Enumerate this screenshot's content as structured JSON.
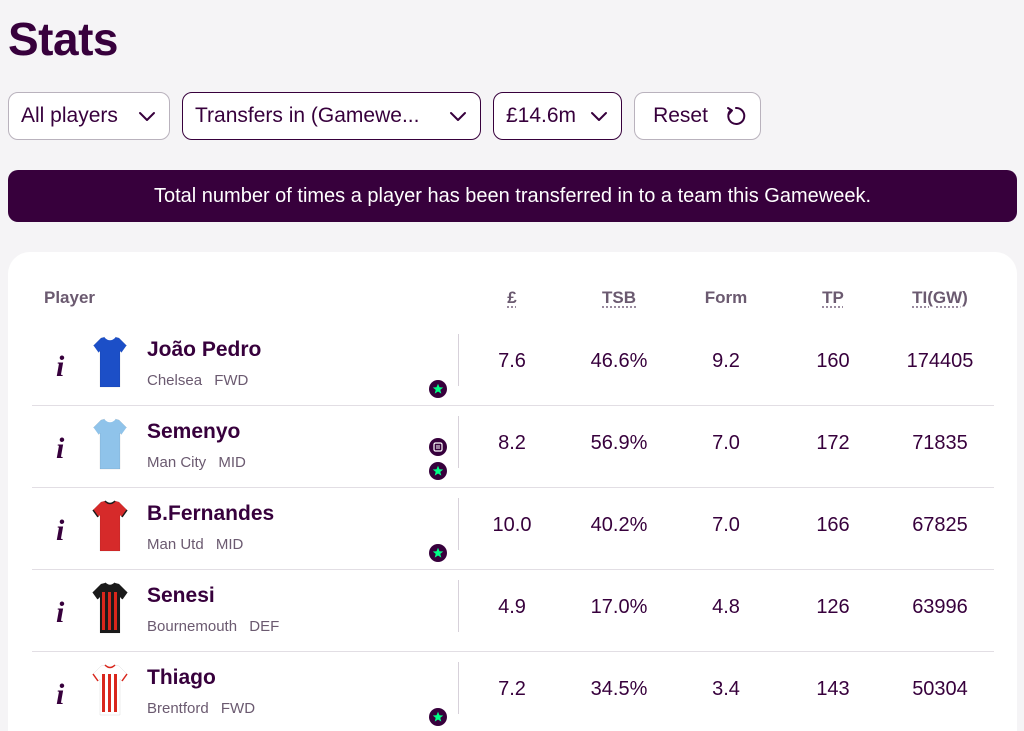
{
  "page": {
    "title": "Stats"
  },
  "filters": {
    "players": "All players",
    "stat": "Transfers in (Gamewe...",
    "price": "£14.6m",
    "reset": "Reset"
  },
  "banner": "Total number of times a player has been transferred in to a team this Gameweek.",
  "table": {
    "headers": {
      "player": "Player",
      "price": "£",
      "tsb": "TSB",
      "form": "Form",
      "tp": "TP",
      "ti": "TI(GW)"
    },
    "rows": [
      {
        "name": "João Pedro",
        "team": "Chelsea",
        "pos": "FWD",
        "price": "7.6",
        "tsb": "46.6%",
        "form": "9.2",
        "tp": "160",
        "ti": "174405",
        "shirt": {
          "main": "#1c4fc7",
          "trim": "#ffffff",
          "stripe": null
        },
        "badges": [
          "star-icon"
        ]
      },
      {
        "name": "Semenyo",
        "team": "Man City",
        "pos": "MID",
        "price": "8.2",
        "tsb": "56.9%",
        "form": "7.0",
        "tp": "172",
        "ti": "71835",
        "shirt": {
          "main": "#8fc3ea",
          "trim": "#ffffff",
          "stripe": null
        },
        "badges": [
          "news-icon",
          "star-icon"
        ]
      },
      {
        "name": "B.Fernandes",
        "team": "Man Utd",
        "pos": "MID",
        "price": "10.0",
        "tsb": "40.2%",
        "form": "7.0",
        "tp": "166",
        "ti": "67825",
        "shirt": {
          "main": "#d62a2a",
          "trim": "#1a1a1a",
          "stripe": null
        },
        "badges": [
          "star-icon"
        ]
      },
      {
        "name": "Senesi",
        "team": "Bournemouth",
        "pos": "DEF",
        "price": "4.9",
        "tsb": "17.0%",
        "form": "4.8",
        "tp": "126",
        "ti": "63996",
        "shirt": {
          "main": "#1a1a1a",
          "trim": "#1a1a1a",
          "stripe": "#d9261c"
        },
        "badges": []
      },
      {
        "name": "Thiago",
        "team": "Brentford",
        "pos": "FWD",
        "price": "7.2",
        "tsb": "34.5%",
        "form": "3.4",
        "tp": "143",
        "ti": "50304",
        "shirt": {
          "main": "#ffffff",
          "trim": "#d9261c",
          "stripe": "#d9261c"
        },
        "badges": [
          "star-icon"
        ]
      }
    ]
  },
  "colors": {
    "brand": "#37003c",
    "accent": "#00ff87",
    "background": "#f5f4f6"
  }
}
